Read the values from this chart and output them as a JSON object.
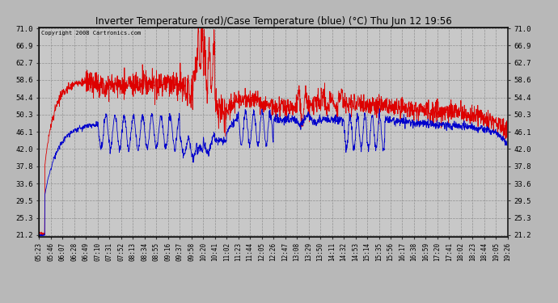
{
  "title": "Inverter Temperature (red)/Case Temperature (blue) (°C) Thu Jun 12 19:56",
  "copyright": "Copyright 2008 Cartronics.com",
  "fig_bg_color": "#b0b0b0",
  "plot_bg_color": "#c8c8c8",
  "grid_color": "#aaaaaa",
  "red_color": "#dd0000",
  "blue_color": "#0000cc",
  "yticks": [
    21.2,
    25.3,
    29.5,
    33.6,
    37.8,
    42.0,
    46.1,
    50.3,
    54.4,
    58.6,
    62.7,
    66.9,
    71.0
  ],
  "ymin": 21.2,
  "ymax": 71.0,
  "xtick_labels": [
    "05:23",
    "05:46",
    "06:07",
    "06:28",
    "06:49",
    "07:10",
    "07:31",
    "07:52",
    "08:13",
    "08:34",
    "08:55",
    "09:16",
    "09:37",
    "09:58",
    "10:20",
    "10:41",
    "11:02",
    "11:23",
    "11:44",
    "12:05",
    "12:26",
    "12:47",
    "13:08",
    "13:29",
    "13:50",
    "14:11",
    "14:32",
    "14:53",
    "15:14",
    "15:35",
    "15:56",
    "16:17",
    "16:38",
    "16:59",
    "17:20",
    "17:41",
    "18:02",
    "18:23",
    "18:44",
    "19:05",
    "19:26"
  ]
}
